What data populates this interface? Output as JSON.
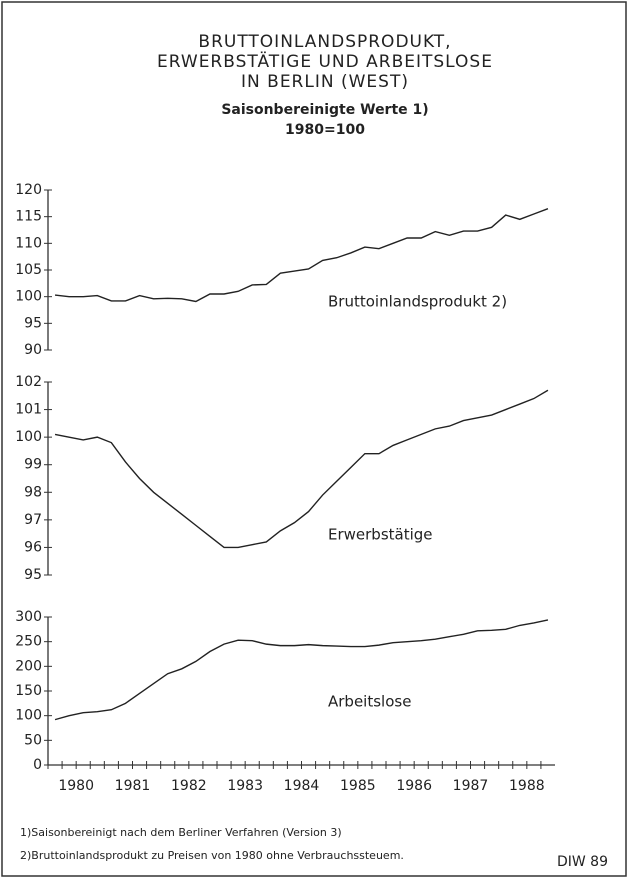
{
  "title_lines": [
    "BRUTTOINLANDSPRODUKT,",
    "ERWERBSTÄTIGE UND ARBEITSLOSE",
    "IN BERLIN (WEST)"
  ],
  "subtitle_lines": [
    "Saisonbereinigte Werte 1)",
    "1980=100"
  ],
  "chart_data": [
    {
      "type": "line",
      "annotation": "Bruttoinlandsprodukt 2)",
      "ylim": [
        90,
        120
      ],
      "yticks": [
        90,
        95,
        100,
        105,
        110,
        115,
        120
      ],
      "values": [
        100.3,
        100,
        100,
        100.2,
        99.2,
        99.2,
        100.2,
        99.6,
        99.7,
        99.6,
        99.1,
        100.5,
        100.5,
        101,
        102.2,
        102.3,
        104.4,
        104.8,
        105.2,
        106.8,
        107.3,
        108.2,
        109.3,
        109,
        110,
        111,
        111,
        112.2,
        111.5,
        112.3,
        112.3,
        113,
        115.3,
        114.5,
        115.5,
        116.5
      ]
    },
    {
      "type": "line",
      "annotation": "Erwerbstätige",
      "ylim": [
        95,
        102
      ],
      "yticks": [
        95,
        96,
        97,
        98,
        99,
        100,
        101,
        102
      ],
      "values": [
        100.1,
        100,
        99.9,
        100,
        99.8,
        99.1,
        98.5,
        98,
        97.6,
        97.2,
        96.8,
        96.4,
        96,
        96,
        96.1,
        96.2,
        96.6,
        96.9,
        97.3,
        97.9,
        98.4,
        98.9,
        99.4,
        99.4,
        99.7,
        99.9,
        100.1,
        100.3,
        100.4,
        100.6,
        100.7,
        100.8,
        101,
        101.2,
        101.4,
        101.7
      ]
    },
    {
      "type": "line",
      "annotation": "Arbeitslose",
      "ylim": [
        0,
        300
      ],
      "yticks": [
        0,
        50,
        100,
        150,
        200,
        250,
        300
      ],
      "categories": [
        "1980",
        null,
        null,
        null,
        "1981",
        null,
        null,
        null,
        "1982",
        null,
        null,
        null,
        "1983",
        null,
        null,
        null,
        "1984",
        null,
        null,
        null,
        "1985",
        null,
        null,
        null,
        "1986",
        null,
        null,
        null,
        "1987",
        null,
        null,
        null,
        "1988",
        null,
        null,
        null
      ],
      "values": [
        92,
        100,
        106,
        108,
        112,
        125,
        145,
        165,
        185,
        195,
        210,
        230,
        245,
        253,
        252,
        245,
        242,
        242,
        244,
        242,
        241,
        240,
        240,
        243,
        248,
        250,
        252,
        255,
        260,
        265,
        272,
        273,
        275,
        283,
        288,
        294
      ]
    }
  ],
  "footnotes": [
    "1)Saisonbereinigt nach dem Berliner Verfahren (Version 3)",
    "2)Bruttoinlandsprodukt zu Preisen von 1980 ohne Verbrauchssteuem."
  ],
  "source": "DIW 89"
}
